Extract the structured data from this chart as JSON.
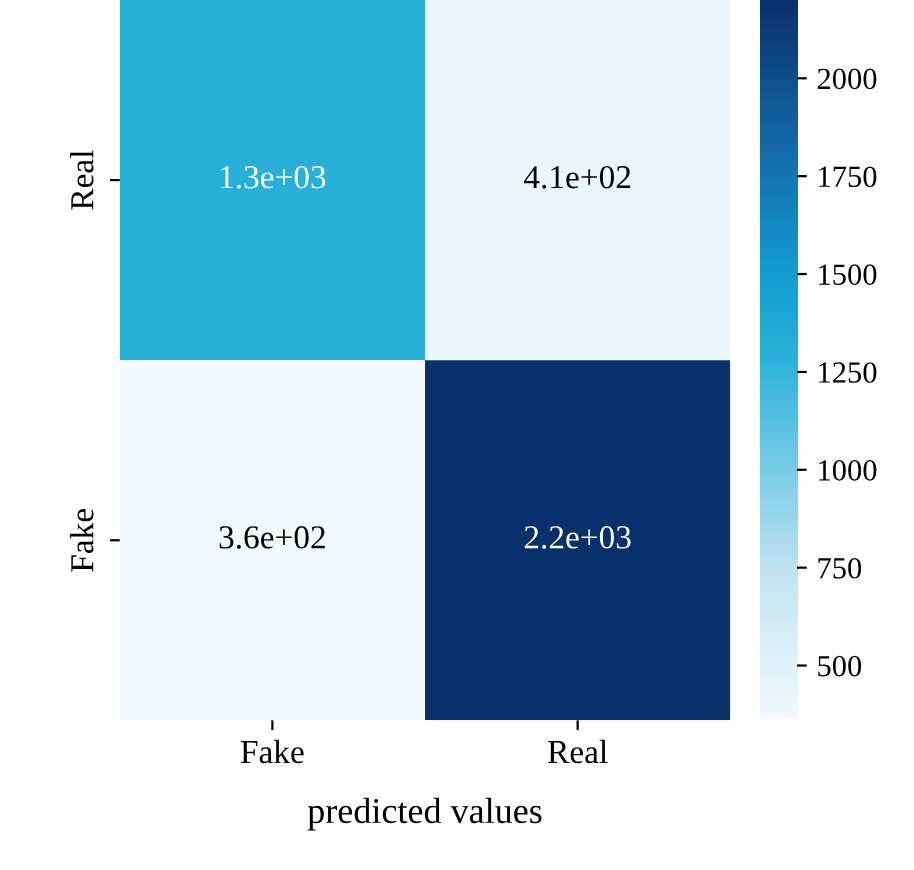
{
  "chart_data": {
    "type": "heatmap",
    "xlabel": "predicted values",
    "categories": [
      "Fake",
      "Real"
    ],
    "y_categories": [
      "Real",
      "Fake"
    ],
    "cells": [
      [
        1300,
        410
      ],
      [
        360,
        2200
      ]
    ],
    "cell_labels": [
      [
        "1.3e+03",
        "4.1e+02"
      ],
      [
        "3.6e+02",
        "2.2e+03"
      ]
    ],
    "clim": [
      360,
      2200
    ],
    "cticks": [
      500,
      750,
      1000,
      1250,
      1500,
      1750,
      2000
    ]
  }
}
